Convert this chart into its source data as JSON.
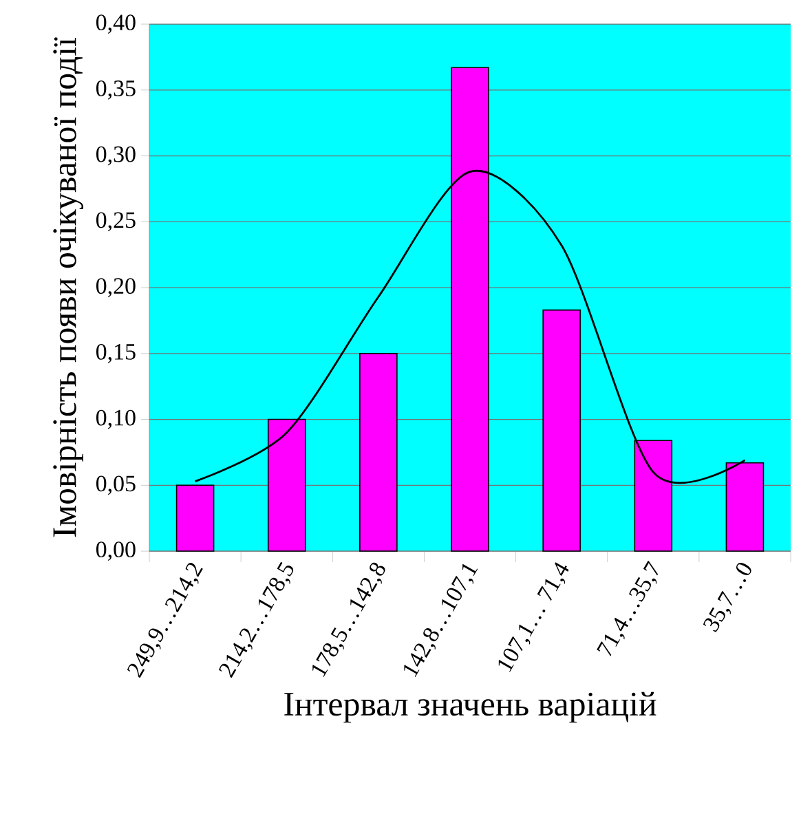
{
  "chart_data": {
    "type": "bar",
    "xlabel": "Інтервал значень варіацій",
    "ylabel": "Імовірність появи очікуваної події",
    "categories": [
      "249,9…214,2",
      "214,2…178,5",
      "178,5…142,8",
      "142,8…107,1",
      "107,1… 71,4",
      "71,4…35,7",
      "35,7…0"
    ],
    "series": [
      {
        "color": "#ff00ff",
        "values": [
          0.05,
          0.1,
          0.15,
          0.367,
          0.183,
          0.084,
          0.067
        ]
      },
      {
        "type": "line",
        "color": "#000000",
        "values": [
          0.053,
          0.09,
          0.193,
          0.288,
          0.232,
          0.06,
          0.069
        ]
      }
    ],
    "ylim": [
      0,
      0.4
    ],
    "yticks": [
      {
        "value": 0,
        "label": "0,00"
      },
      {
        "value": 0.05,
        "label": "0,05"
      },
      {
        "value": 0.1,
        "label": "0,10"
      },
      {
        "value": 0.15,
        "label": "0,15"
      },
      {
        "value": 0.2,
        "label": "0,20"
      },
      {
        "value": 0.25,
        "label": "0,25"
      },
      {
        "value": 0.3,
        "label": "0,30"
      },
      {
        "value": 0.35,
        "label": "0,35"
      },
      {
        "value": 0.4,
        "label": "0,40"
      }
    ],
    "grid": "y"
  }
}
